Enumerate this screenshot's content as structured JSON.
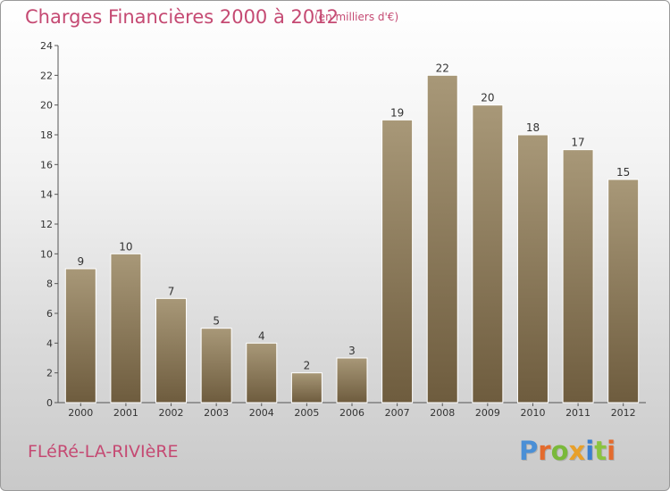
{
  "title": "Charges Financières 2000 à 2012",
  "subtitle": "(en milliers d'€)",
  "commune": "FLéRé-LA-RIVIèRE",
  "logo": {
    "text": "Proxiti",
    "letters": [
      {
        "ch": "P",
        "color": "#4a8fd6"
      },
      {
        "ch": "r",
        "color": "#e46b2d"
      },
      {
        "ch": "o",
        "color": "#7ab93a"
      },
      {
        "ch": "x",
        "color": "#e8a02a"
      },
      {
        "ch": "i",
        "color": "#3a7fcf"
      },
      {
        "ch": "t",
        "color": "#8ac43f"
      },
      {
        "ch": "i",
        "color": "#e46b2d"
      }
    ]
  },
  "chart_data": {
    "type": "bar",
    "categories": [
      "2000",
      "2001",
      "2002",
      "2003",
      "2004",
      "2005",
      "2006",
      "2007",
      "2008",
      "2009",
      "2010",
      "2011",
      "2012"
    ],
    "values": [
      9,
      10,
      7,
      5,
      4,
      2,
      3,
      19,
      22,
      20,
      18,
      17,
      15
    ],
    "ylim": [
      0,
      24
    ],
    "yticks": [
      0,
      2,
      4,
      6,
      8,
      10,
      12,
      14,
      16,
      18,
      20,
      22,
      24
    ],
    "grid": false,
    "colors": {
      "bar_top": "#a89878",
      "bar_bottom": "#6e5c3e",
      "axis": "#555555",
      "text": "#333333"
    }
  }
}
